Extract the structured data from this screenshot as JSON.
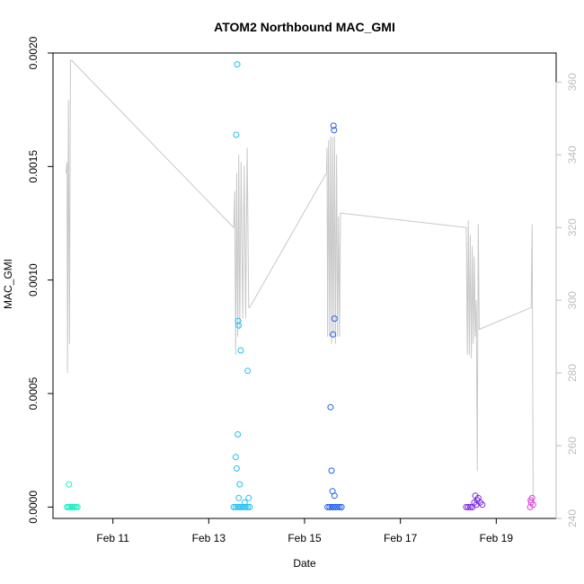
{
  "chart_data": {
    "type": "scatter",
    "title": "ATOM2 Northbound MAC_GMI",
    "xlabel": "Date",
    "ylabel": "MAC_GMI",
    "y2label": "",
    "grid": false,
    "legend": "none",
    "xlim": [
      "2024-02-09T18:00",
      "2024-02-20T06:00"
    ],
    "ylim": [
      -5e-05,
      0.002
    ],
    "y2lim": [
      240,
      368
    ],
    "x_ticks": [
      {
        "label": "Feb 11",
        "value": "2024-02-11"
      },
      {
        "label": "Feb 13",
        "value": "2024-02-13"
      },
      {
        "label": "Feb 15",
        "value": "2024-02-15"
      },
      {
        "label": "Feb 17",
        "value": "2024-02-17"
      },
      {
        "label": "Feb 19",
        "value": "2024-02-19"
      }
    ],
    "y_ticks": [
      {
        "label": "0.0000",
        "value": 0.0
      },
      {
        "label": "0.0005",
        "value": 0.0005
      },
      {
        "label": "0.0010",
        "value": 0.001
      },
      {
        "label": "0.0015",
        "value": 0.0015
      },
      {
        "label": "0.0020",
        "value": 0.002
      }
    ],
    "y2_ticks": [
      {
        "label": "240",
        "value": 240
      },
      {
        "label": "260",
        "value": 260
      },
      {
        "label": "280",
        "value": 280
      },
      {
        "label": "300",
        "value": 300
      },
      {
        "label": "320",
        "value": 320
      },
      {
        "label": "340",
        "value": 340
      },
      {
        "label": "360",
        "value": 360
      }
    ],
    "colors": {
      "line": "#c8c8c8",
      "right_axis": "#bdbdbd",
      "axis": "#000000"
    },
    "point_groups": [
      {
        "color": "#22eec4",
        "points": [
          [
            "2024-02-10T01:00",
            0.0
          ],
          [
            "2024-02-10T01:45",
            0.0
          ],
          [
            "2024-02-10T02:30",
            0.0
          ],
          [
            "2024-02-10T03:15",
            0.0
          ],
          [
            "2024-02-10T04:00",
            0.0
          ],
          [
            "2024-02-10T04:45",
            0.0
          ],
          [
            "2024-02-10T05:30",
            0.0
          ],
          [
            "2024-02-10T06:15",
            0.0
          ],
          [
            "2024-02-10T02:00",
            0.0001
          ]
        ]
      },
      {
        "color": "#22c0f0",
        "points": [
          [
            "2024-02-13T12:30",
            0.0
          ],
          [
            "2024-02-13T13:30",
            0.0
          ],
          [
            "2024-02-13T14:30",
            0.0
          ],
          [
            "2024-02-13T15:30",
            0.0
          ],
          [
            "2024-02-13T16:30",
            0.0
          ],
          [
            "2024-02-13T17:30",
            0.0
          ],
          [
            "2024-02-13T18:30",
            0.0
          ],
          [
            "2024-02-13T19:30",
            0.0
          ],
          [
            "2024-02-13T20:30",
            0.0
          ],
          [
            "2024-02-13T13:30",
            0.00022
          ],
          [
            "2024-02-13T14:00",
            0.00017
          ],
          [
            "2024-02-13T14:30",
            0.00032
          ],
          [
            "2024-02-13T15:30",
            0.0001
          ],
          [
            "2024-02-13T15:00",
            4e-05
          ],
          [
            "2024-02-13T20:00",
            4e-05
          ],
          [
            "2024-02-13T18:00",
            2e-05
          ],
          [
            "2024-02-13T14:15",
            0.00195
          ],
          [
            "2024-02-13T13:45",
            0.00164
          ],
          [
            "2024-02-13T14:45",
            0.00082
          ],
          [
            "2024-02-13T15:00",
            0.0008
          ],
          [
            "2024-02-13T16:00",
            0.00069
          ],
          [
            "2024-02-13T19:30",
            0.0006
          ]
        ]
      },
      {
        "color": "#2060ee",
        "points": [
          [
            "2024-02-15T11:30",
            0.0
          ],
          [
            "2024-02-15T12:30",
            0.0
          ],
          [
            "2024-02-15T13:30",
            0.0
          ],
          [
            "2024-02-15T14:30",
            0.0
          ],
          [
            "2024-02-15T15:30",
            0.0
          ],
          [
            "2024-02-15T16:30",
            0.0
          ],
          [
            "2024-02-15T17:30",
            0.0
          ],
          [
            "2024-02-15T18:30",
            0.0
          ],
          [
            "2024-02-15T13:00",
            0.00044
          ],
          [
            "2024-02-15T13:30",
            0.00016
          ],
          [
            "2024-02-15T14:00",
            7e-05
          ],
          [
            "2024-02-15T15:00",
            5e-05
          ],
          [
            "2024-02-15T14:30",
            0.00168
          ],
          [
            "2024-02-15T14:45",
            0.00166
          ],
          [
            "2024-02-15T15:00",
            0.00083
          ],
          [
            "2024-02-15T14:15",
            0.00076
          ]
        ]
      },
      {
        "color": "#7a2ae0",
        "points": [
          [
            "2024-02-18T09:00",
            0.0
          ],
          [
            "2024-02-18T10:00",
            0.0
          ],
          [
            "2024-02-18T11:00",
            0.0
          ],
          [
            "2024-02-18T12:00",
            0.0
          ],
          [
            "2024-02-18T13:00",
            2e-05
          ],
          [
            "2024-02-18T14:00",
            1e-05
          ],
          [
            "2024-02-18T15:00",
            4e-05
          ],
          [
            "2024-02-18T16:00",
            2e-05
          ],
          [
            "2024-02-18T17:00",
            1e-05
          ],
          [
            "2024-02-18T13:30",
            5e-05
          ],
          [
            "2024-02-18T14:30",
            3e-05
          ]
        ]
      },
      {
        "color": "#e040e0",
        "points": [
          [
            "2024-02-19T17:00",
            0.0
          ],
          [
            "2024-02-19T17:30",
            2e-05
          ],
          [
            "2024-02-19T18:00",
            4e-05
          ],
          [
            "2024-02-19T18:30",
            1e-05
          ],
          [
            "2024-02-19T17:15",
            3e-05
          ]
        ]
      }
    ],
    "line_series": {
      "axis": "right",
      "points": [
        [
          "2024-02-10T00:30",
          335
        ],
        [
          "2024-02-10T01:00",
          338
        ],
        [
          "2024-02-10T01:15",
          280
        ],
        [
          "2024-02-10T01:45",
          355
        ],
        [
          "2024-02-10T02:15",
          288
        ],
        [
          "2024-02-10T02:45",
          366
        ],
        [
          "2024-02-10T03:15",
          366
        ],
        [
          "2024-02-13T12:30",
          320
        ],
        [
          "2024-02-13T13:00",
          330
        ],
        [
          "2024-02-13T13:30",
          285
        ],
        [
          "2024-02-13T14:00",
          335
        ],
        [
          "2024-02-13T14:30",
          290
        ],
        [
          "2024-02-13T15:00",
          340
        ],
        [
          "2024-02-13T15:30",
          292
        ],
        [
          "2024-02-13T16:15",
          338
        ],
        [
          "2024-02-13T17:00",
          295
        ],
        [
          "2024-02-13T17:45",
          337
        ],
        [
          "2024-02-13T18:30",
          295
        ],
        [
          "2024-02-13T19:15",
          342
        ],
        [
          "2024-02-13T20:00",
          298
        ],
        [
          "2024-02-13T20:30",
          298
        ],
        [
          "2024-02-15T11:00",
          335
        ],
        [
          "2024-02-15T11:15",
          342
        ],
        [
          "2024-02-15T11:30",
          290
        ],
        [
          "2024-02-15T12:00",
          344
        ],
        [
          "2024-02-15T12:30",
          290
        ],
        [
          "2024-02-15T13:00",
          345
        ],
        [
          "2024-02-15T13:30",
          288
        ],
        [
          "2024-02-15T14:00",
          345
        ],
        [
          "2024-02-15T14:30",
          290
        ],
        [
          "2024-02-15T15:00",
          345
        ],
        [
          "2024-02-15T15:30",
          288
        ],
        [
          "2024-02-15T16:00",
          340
        ],
        [
          "2024-02-15T16:30",
          290
        ],
        [
          "2024-02-15T17:00",
          323
        ],
        [
          "2024-02-15T17:30",
          290
        ],
        [
          "2024-02-15T18:00",
          324
        ],
        [
          "2024-02-18T09:00",
          320
        ],
        [
          "2024-02-18T09:30",
          285
        ],
        [
          "2024-02-18T10:00",
          322
        ],
        [
          "2024-02-18T10:30",
          285
        ],
        [
          "2024-02-18T11:00",
          318
        ],
        [
          "2024-02-18T11:30",
          284
        ],
        [
          "2024-02-18T12:00",
          315
        ],
        [
          "2024-02-18T12:30",
          288
        ],
        [
          "2024-02-18T13:00",
          312
        ],
        [
          "2024-02-18T13:30",
          290
        ],
        [
          "2024-02-18T14:00",
          300
        ],
        [
          "2024-02-18T14:30",
          253
        ],
        [
          "2024-02-18T15:00",
          321
        ],
        [
          "2024-02-18T15:30",
          292
        ],
        [
          "2024-02-19T17:30",
          298
        ],
        [
          "2024-02-19T18:00",
          321
        ],
        [
          "2024-02-19T18:30",
          245
        ]
      ]
    }
  }
}
